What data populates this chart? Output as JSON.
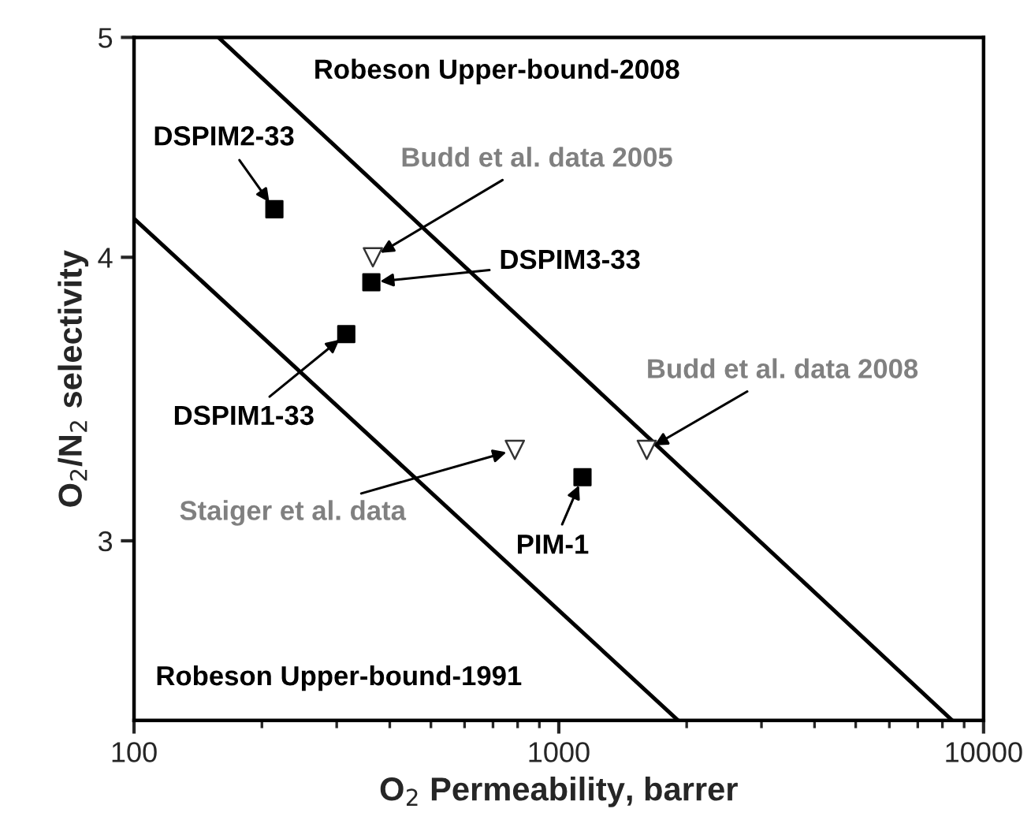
{
  "chart_data": {
    "type": "scatter",
    "xlabel": "O$_{2}$ Permeability, barrer",
    "ylabel": "O$_{2}$/N$_{2}$ selectivity",
    "log": "xy",
    "xlim": [
      100,
      10000
    ],
    "ylim": [
      2.5,
      5
    ],
    "xticks": [
      100,
      1000,
      10000
    ],
    "yticks": [
      3,
      4,
      5
    ],
    "grid": false,
    "legend": false,
    "series": [
      {
        "marker": "square",
        "color": "#000000",
        "x": [
          214,
          362,
          316,
          1137
        ],
        "values": [
          4.2,
          3.9,
          3.7,
          3.2
        ]
      },
      {
        "marker": "triangle",
        "color": "#333333",
        "x": [
          365,
          788,
          1611
        ],
        "values": [
          4.0,
          3.29,
          3.29
        ]
      },
      {
        "type": "line",
        "marker": "none",
        "color": "#000000",
        "x": [
          100,
          1910
        ],
        "values": [
          4.16,
          2.5
        ]
      },
      {
        "type": "line",
        "marker": "none",
        "color": "#000000",
        "x": [
          158,
          8440
        ],
        "values": [
          5,
          2.5
        ]
      }
    ],
    "annotations": [
      "Robeson Upper-bound-2008",
      "Robeson Upper-bound-1991",
      {
        "text": "DSPIM2-33",
        "x": 214,
        "y": 4.2
      },
      {
        "text": "DSPIM3-33",
        "x": 362,
        "y": 3.9
      },
      {
        "text": "DSPIM1-33",
        "x": 316,
        "y": 3.7
      },
      {
        "text": "PIM-1",
        "x": 1137,
        "y": 3.2
      },
      {
        "text": "Budd et al. data 2005",
        "x": 365,
        "y": 4.0
      },
      {
        "text": "Budd et al. data 2008",
        "x": 1611,
        "y": 3.29
      },
      {
        "text": "Staiger et al. data",
        "x": 788,
        "y": 3.29
      }
    ]
  }
}
